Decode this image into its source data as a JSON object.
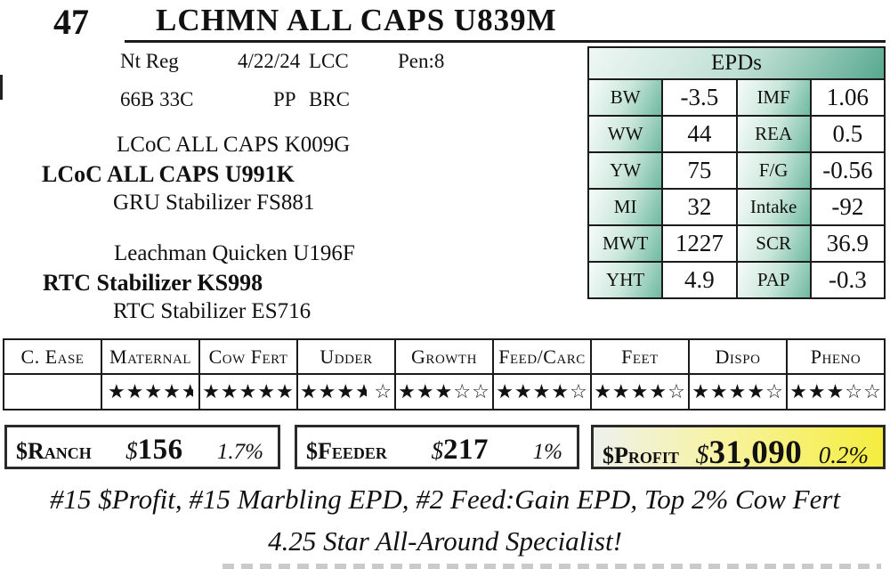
{
  "lot": {
    "number": "47",
    "title": "LCHMN ALL CAPS U839M"
  },
  "registration": {
    "reg_status": "Nt Reg",
    "birth_date": "4/22/24",
    "code1": "LCC",
    "pen": "Pen:8",
    "tattoo": "66B 33C",
    "horn_status": "PP",
    "code2": "BRC"
  },
  "pedigree": {
    "sire_top": "LCoC ALL CAPS K009G",
    "sire_main": "LCoC ALL CAPS U991K",
    "sire_bottom": "GRU Stabilizer FS881",
    "dam_top": "Leachman Quicken U196F",
    "dam_main": "RTC Stabilizer KS998",
    "dam_bottom": "RTC Stabilizer ES716"
  },
  "epd_table": {
    "title": "EPDs",
    "rows": [
      {
        "label1": "BW",
        "value1": "-3.5",
        "label2": "IMF",
        "value2": "1.06"
      },
      {
        "label1": "WW",
        "value1": "44",
        "label2": "REA",
        "value2": "0.5"
      },
      {
        "label1": "YW",
        "value1": "75",
        "label2": "F/G",
        "value2": "-0.56"
      },
      {
        "label1": "MI",
        "value1": "32",
        "label2": "Intake",
        "value2": "-92"
      },
      {
        "label1": "MWT",
        "value1": "1227",
        "label2": "SCR",
        "value2": "36.9"
      },
      {
        "label1": "YHT",
        "value1": "4.9",
        "label2": "PAP",
        "value2": "-0.3"
      }
    ]
  },
  "star_table": {
    "columns": [
      {
        "label": "C. Ease",
        "full": 0,
        "half": false,
        "empty": 0
      },
      {
        "label": "Maternal",
        "full": 4,
        "half": true,
        "empty": 0
      },
      {
        "label": "Cow Fert",
        "full": 5,
        "half": false,
        "empty": 0
      },
      {
        "label": "Udder",
        "full": 3,
        "half": true,
        "empty": 1
      },
      {
        "label": "Growth",
        "full": 3,
        "half": false,
        "empty": 2
      },
      {
        "label": "Feed/Carc",
        "full": 4,
        "half": false,
        "empty": 1
      },
      {
        "label": "Feet",
        "full": 4,
        "half": false,
        "empty": 1
      },
      {
        "label": "Dispo",
        "full": 4,
        "half": false,
        "empty": 1
      },
      {
        "label": "Pheno",
        "full": 3,
        "half": false,
        "empty": 2
      }
    ]
  },
  "indexes": [
    {
      "name": "Ranch",
      "symbol": "$",
      "amount": "156",
      "percent": "1.7%",
      "highlight": false
    },
    {
      "name": "Feeder",
      "symbol": "$",
      "amount": "217",
      "percent": "1%",
      "highlight": false
    },
    {
      "name": "Profit",
      "symbol": "$",
      "amount": "31,090",
      "percent": "0.2%",
      "highlight": true
    }
  ],
  "notes": {
    "line1": "#15 $Profit, #15 Marbling EPD, #2 Feed:Gain EPD, Top 2% Cow Fert",
    "line2": "4.25 Star All-Around Specialist!"
  },
  "icons": {
    "full_star": "★",
    "empty_star": "☆"
  },
  "colors": {
    "epd_teal": "#57a88f",
    "epd_teal_light": "#eff7f5",
    "star_header_tan": "#ead0ab",
    "star_header_light": "#e7edf0",
    "profit_yellow": "#f4ed3e",
    "border_black": "#1b1b1b"
  }
}
